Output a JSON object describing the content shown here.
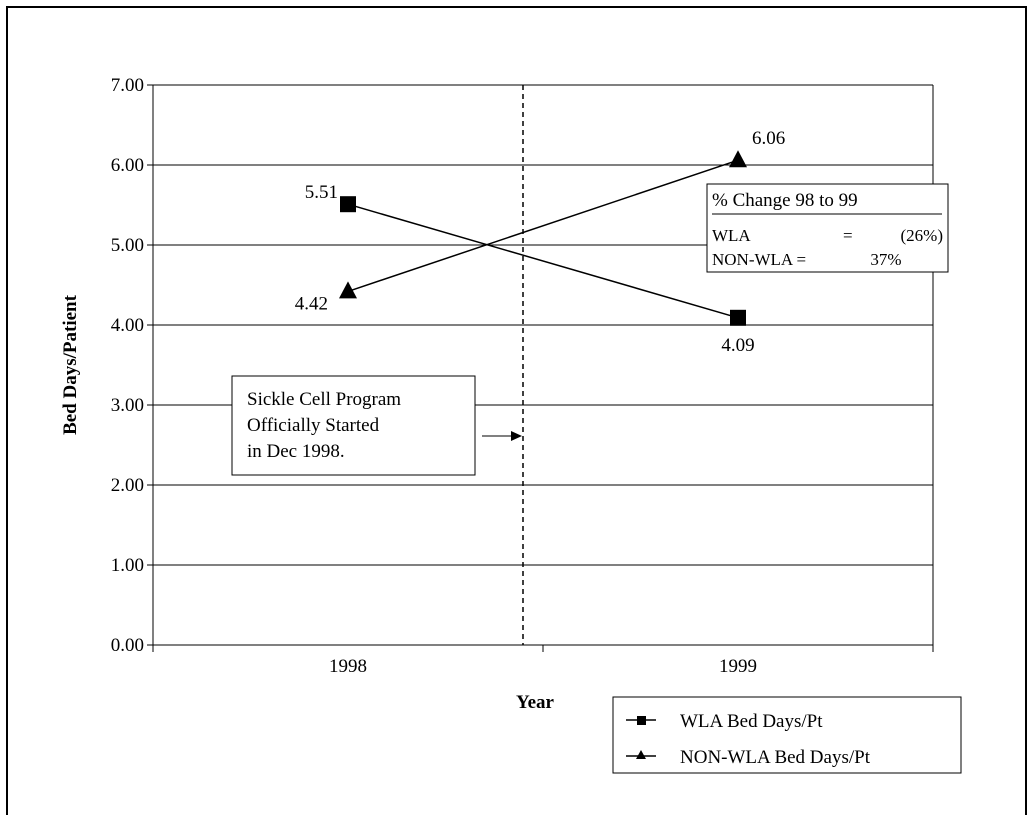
{
  "chart_data": {
    "type": "line",
    "categories": [
      "1998",
      "1999"
    ],
    "series": [
      {
        "name": "WLA Bed Days/Pt",
        "values": [
          5.51,
          4.09
        ],
        "marker": "square"
      },
      {
        "name": "NON-WLA Bed Days/Pt",
        "values": [
          4.42,
          6.06
        ],
        "marker": "triangle"
      }
    ],
    "data_labels": [
      [
        "5.51",
        "4.09"
      ],
      [
        "4.42",
        "6.06"
      ]
    ],
    "xlabel": "Year",
    "ylabel": "Bed Days/Patient",
    "ylim": [
      0,
      7
    ],
    "yticks": [
      "0.00",
      "1.00",
      "2.00",
      "3.00",
      "4.00",
      "5.00",
      "6.00",
      "7.00"
    ],
    "grid": true,
    "legend": "bottom-right",
    "colors": {
      "line": "#000000",
      "background": "#ffffff"
    },
    "annotations": {
      "program_start": {
        "lines": [
          "Sickle Cell Program",
          "Officially Started",
          "in Dec 1998."
        ]
      },
      "change_box": {
        "title": "% Change 98 to 99",
        "rows": [
          {
            "label": "WLA",
            "eq": "=",
            "value": "(26%)"
          },
          {
            "label": "NON-WLA =",
            "eq": "",
            "value": "37%"
          }
        ]
      }
    }
  }
}
